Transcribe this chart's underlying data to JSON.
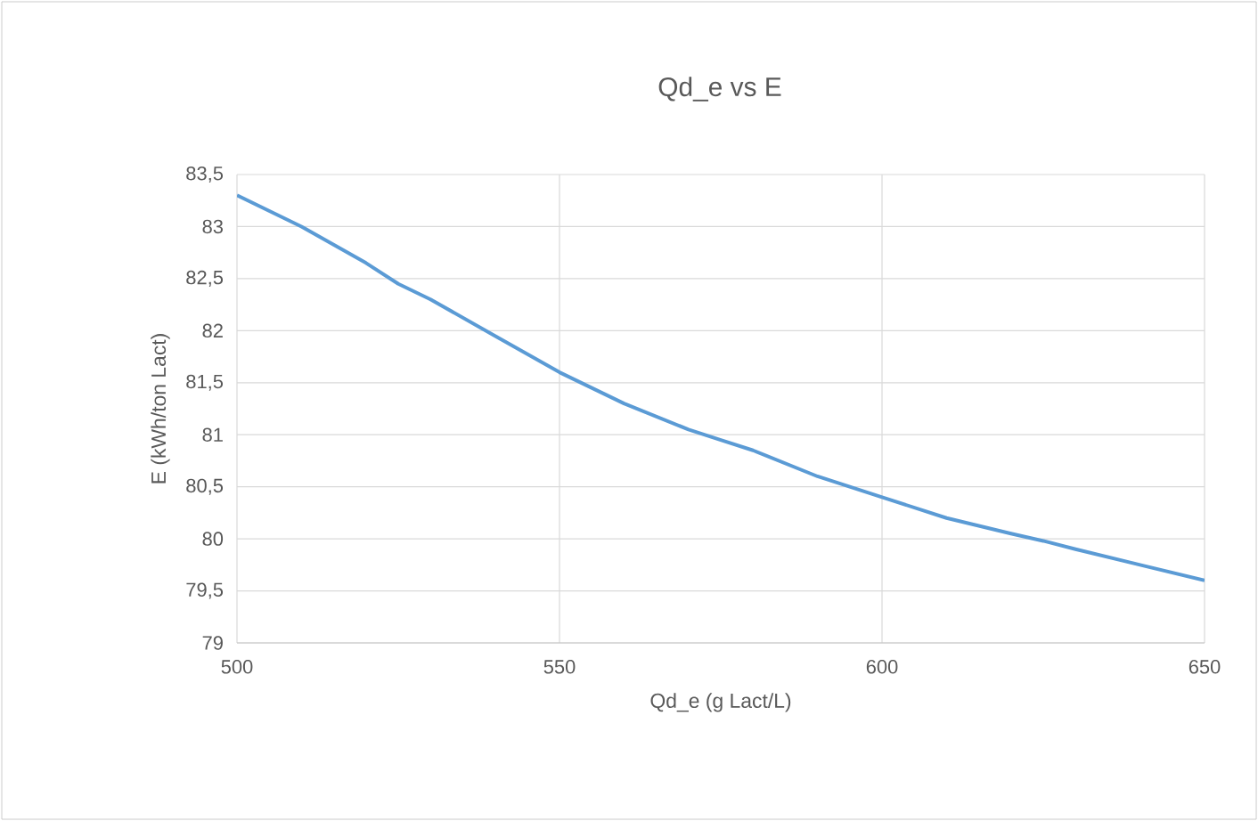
{
  "chart_data": {
    "type": "line",
    "title": "Qd_e vs E",
    "xlabel": "Qd_e (g Lact/L)",
    "ylabel": "E (kWh/ton Lact)",
    "x": [
      500,
      510,
      520,
      525,
      530,
      540,
      550,
      560,
      570,
      575,
      580,
      590,
      600,
      610,
      620,
      625,
      630,
      640,
      650
    ],
    "series": [
      {
        "color": "#5b9bd5",
        "values": [
          83.3,
          83.0,
          82.65,
          82.45,
          82.3,
          81.95,
          81.6,
          81.3,
          81.05,
          80.95,
          80.85,
          80.6,
          80.4,
          80.2,
          80.05,
          79.98,
          79.9,
          79.75,
          79.6
        ]
      }
    ],
    "xlim": [
      500,
      650
    ],
    "xticks": [
      500,
      550,
      600,
      650
    ],
    "ylim": [
      79,
      83.5
    ],
    "yticks": [
      79,
      {
        "value": 79.5,
        "label": "79,5"
      },
      80,
      {
        "value": 80.5,
        "label": "80,5"
      },
      81,
      {
        "value": 81.5,
        "label": "81,5"
      },
      82,
      {
        "value": 82.5,
        "label": "82,5"
      },
      83,
      {
        "value": 83.5,
        "label": "83,5"
      }
    ],
    "grid": true,
    "marker": "none",
    "line_style": "solid"
  }
}
